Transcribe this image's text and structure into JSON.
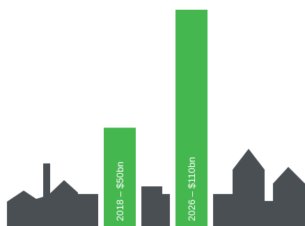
{
  "colors": {
    "bar": "#45b74f",
    "buildings": "#4a4f54",
    "background": "#ffffff"
  },
  "chart_data": {
    "type": "bar",
    "categories": [
      "2018",
      "2026"
    ],
    "values": [
      50,
      110
    ],
    "unit": "$bn",
    "bars": [
      {
        "year": "2018",
        "value": 50,
        "label": "2018 – $50bn"
      },
      {
        "year": "2026",
        "value": 110,
        "label": "2026 – $110bn"
      }
    ],
    "title": "",
    "xlabel": "",
    "ylabel": "",
    "ylim": [
      0,
      110
    ],
    "grid": false,
    "legend": "none"
  }
}
